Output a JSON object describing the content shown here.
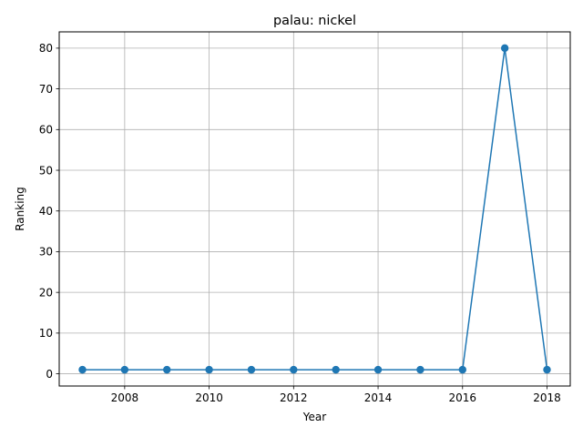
{
  "chart_data": {
    "type": "line",
    "title": "palau: nickel",
    "xlabel": "Year",
    "ylabel": "Ranking",
    "x": [
      2007,
      2008,
      2009,
      2010,
      2011,
      2012,
      2013,
      2014,
      2015,
      2016,
      2017,
      2018
    ],
    "series": [
      {
        "values": [
          1,
          1,
          1,
          1,
          1,
          1,
          1,
          1,
          1,
          1,
          80,
          1
        ]
      }
    ],
    "xlim": [
      2006.45,
      2018.55
    ],
    "ylim": [
      -3.0,
      84.0
    ],
    "xticks": [
      2008,
      2010,
      2012,
      2014,
      2016,
      2018
    ],
    "yticks": [
      0,
      10,
      20,
      30,
      40,
      50,
      60,
      70,
      80
    ],
    "grid": true,
    "colors": {
      "line": "#1f77b4",
      "grid": "#b0b0b0",
      "axes": "#000000"
    }
  }
}
